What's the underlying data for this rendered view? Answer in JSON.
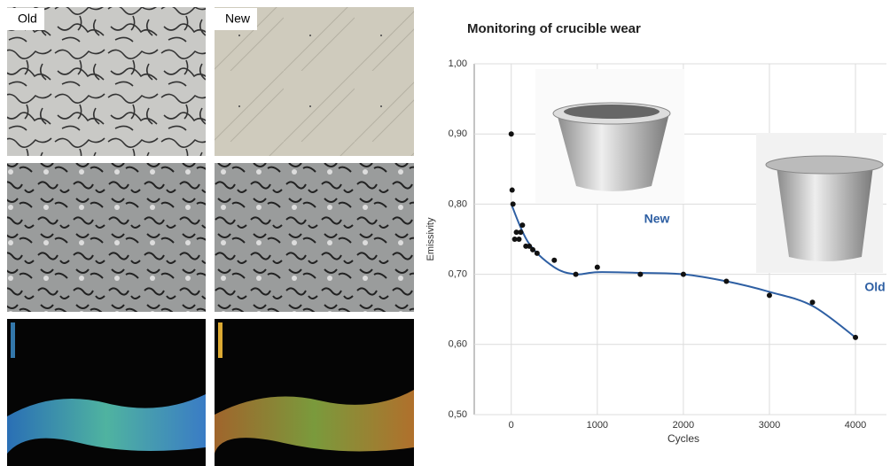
{
  "images": {
    "labels": [
      "Old",
      "New"
    ]
  },
  "chart_data": {
    "type": "scatter",
    "title": "Monitoring of crucible wear",
    "x_label": "Cycles",
    "y_label": "Emissivity",
    "xlim": [
      -430,
      4360
    ],
    "ylim": [
      0.5,
      1.0
    ],
    "xticks": [
      0,
      1000,
      2000,
      3000,
      4000
    ],
    "yticks": [
      {
        "value": 0.5,
        "label": "0,50"
      },
      {
        "value": 0.6,
        "label": "0,60"
      },
      {
        "value": 0.7,
        "label": "0,70"
      },
      {
        "value": 0.8,
        "label": "0,80"
      },
      {
        "value": 0.9,
        "label": "0,90"
      },
      {
        "value": 1.0,
        "label": "1,00"
      }
    ],
    "grid": true,
    "series": [
      {
        "mode": "markers",
        "color": "#111111",
        "x": [
          0,
          10,
          20,
          40,
          60,
          90,
          110,
          130,
          170,
          210,
          250,
          300,
          500,
          750,
          1000,
          1500,
          2000,
          2500,
          3000,
          3500,
          4000
        ],
        "values": [
          0.9,
          0.82,
          0.8,
          0.75,
          0.76,
          0.75,
          0.76,
          0.77,
          0.74,
          0.74,
          0.735,
          0.73,
          0.72,
          0.7,
          0.71,
          0.7,
          0.7,
          0.69,
          0.67,
          0.66,
          0.61
        ]
      },
      {
        "mode": "line",
        "color": "#2e5fa3",
        "x": [
          0,
          200,
          500,
          750,
          1000,
          1500,
          2000,
          2500,
          3000,
          3500,
          4000
        ],
        "values": [
          0.8,
          0.745,
          0.71,
          0.7,
          0.703,
          0.702,
          0.7,
          0.69,
          0.675,
          0.655,
          0.61
        ]
      }
    ],
    "annotations": [
      "New",
      "Old"
    ]
  }
}
